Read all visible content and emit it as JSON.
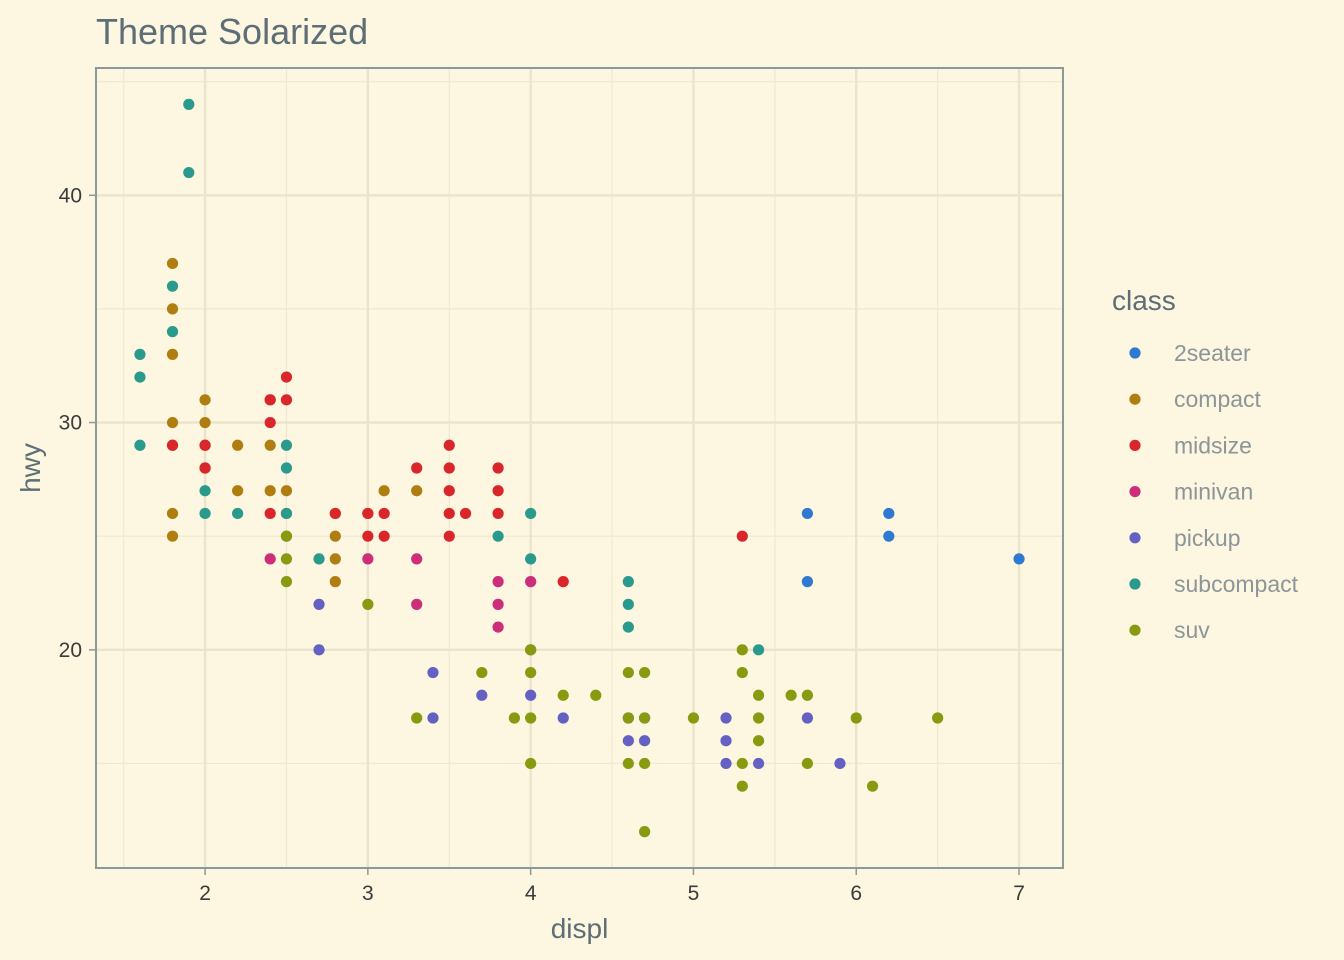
{
  "chart_data": {
    "type": "scatter",
    "title": "Theme Solarized",
    "xlabel": "displ",
    "ylabel": "hwy",
    "xlim": [
      1.33,
      7.27
    ],
    "ylim": [
      10.4,
      45.6
    ],
    "x_ticks": [
      2,
      3,
      4,
      5,
      6,
      7
    ],
    "y_ticks": [
      20,
      30,
      40
    ],
    "grid": true,
    "legend": {
      "title": "class",
      "position": "right",
      "entries": [
        {
          "name": "2seater",
          "color": "#2f7ad0"
        },
        {
          "name": "compact",
          "color": "#b07e10"
        },
        {
          "name": "midsize",
          "color": "#d9262a"
        },
        {
          "name": "minivan",
          "color": "#cc2e7a"
        },
        {
          "name": "pickup",
          "color": "#6461c2"
        },
        {
          "name": "subcompact",
          "color": "#2a9a8c"
        },
        {
          "name": "suv",
          "color": "#879a10"
        }
      ]
    },
    "series": [
      {
        "name": "2seater",
        "color": "#2f7ad0",
        "points": [
          [
            5.7,
            26
          ],
          [
            5.7,
            23
          ],
          [
            6.2,
            26
          ],
          [
            6.2,
            25
          ],
          [
            7.0,
            24
          ]
        ]
      },
      {
        "name": "compact",
        "color": "#b07e10",
        "points": [
          [
            1.8,
            37
          ],
          [
            1.8,
            35
          ],
          [
            1.8,
            33
          ],
          [
            1.8,
            30
          ],
          [
            1.8,
            29
          ],
          [
            1.8,
            26
          ],
          [
            1.8,
            25
          ],
          [
            2.0,
            31
          ],
          [
            2.0,
            30
          ],
          [
            2.0,
            29
          ],
          [
            2.0,
            28
          ],
          [
            2.2,
            29
          ],
          [
            2.2,
            27
          ],
          [
            2.4,
            31
          ],
          [
            2.4,
            29
          ],
          [
            2.4,
            27
          ],
          [
            2.5,
            27
          ],
          [
            2.5,
            26
          ],
          [
            2.5,
            25
          ],
          [
            2.8,
            26
          ],
          [
            2.8,
            25
          ],
          [
            2.8,
            24
          ],
          [
            2.8,
            23
          ],
          [
            3.0,
            26
          ],
          [
            3.1,
            27
          ],
          [
            3.3,
            27
          ]
        ]
      },
      {
        "name": "midsize",
        "color": "#d9262a",
        "points": [
          [
            1.8,
            29
          ],
          [
            2.0,
            29
          ],
          [
            2.0,
            28
          ],
          [
            2.4,
            31
          ],
          [
            2.4,
            30
          ],
          [
            2.4,
            26
          ],
          [
            2.5,
            32
          ],
          [
            2.5,
            31
          ],
          [
            2.8,
            26
          ],
          [
            3.0,
            26
          ],
          [
            3.0,
            25
          ],
          [
            3.1,
            26
          ],
          [
            3.1,
            25
          ],
          [
            3.3,
            28
          ],
          [
            3.5,
            29
          ],
          [
            3.5,
            28
          ],
          [
            3.5,
            27
          ],
          [
            3.5,
            26
          ],
          [
            3.5,
            25
          ],
          [
            3.6,
            26
          ],
          [
            3.8,
            28
          ],
          [
            3.8,
            27
          ],
          [
            3.8,
            26
          ],
          [
            4.2,
            23
          ],
          [
            5.3,
            25
          ]
        ]
      },
      {
        "name": "minivan",
        "color": "#cc2e7a",
        "points": [
          [
            2.4,
            24
          ],
          [
            3.0,
            24
          ],
          [
            3.3,
            24
          ],
          [
            3.3,
            22
          ],
          [
            3.8,
            23
          ],
          [
            3.8,
            22
          ],
          [
            3.8,
            21
          ],
          [
            4.0,
            23
          ]
        ]
      },
      {
        "name": "pickup",
        "color": "#6461c2",
        "points": [
          [
            2.7,
            22
          ],
          [
            2.7,
            20
          ],
          [
            3.4,
            19
          ],
          [
            3.4,
            17
          ],
          [
            3.7,
            18
          ],
          [
            4.0,
            20
          ],
          [
            4.0,
            18
          ],
          [
            4.2,
            17
          ],
          [
            4.6,
            17
          ],
          [
            4.6,
            16
          ],
          [
            4.7,
            17
          ],
          [
            4.7,
            16
          ],
          [
            5.2,
            17
          ],
          [
            5.2,
            16
          ],
          [
            5.2,
            15
          ],
          [
            5.4,
            15
          ],
          [
            5.7,
            17
          ],
          [
            5.9,
            15
          ]
        ]
      },
      {
        "name": "subcompact",
        "color": "#2a9a8c",
        "points": [
          [
            1.6,
            33
          ],
          [
            1.6,
            32
          ],
          [
            1.6,
            29
          ],
          [
            1.8,
            36
          ],
          [
            1.8,
            34
          ],
          [
            1.9,
            44
          ],
          [
            1.9,
            41
          ],
          [
            2.0,
            27
          ],
          [
            2.0,
            26
          ],
          [
            2.2,
            26
          ],
          [
            2.5,
            29
          ],
          [
            2.5,
            28
          ],
          [
            2.5,
            26
          ],
          [
            2.7,
            24
          ],
          [
            3.8,
            25
          ],
          [
            4.0,
            26
          ],
          [
            4.0,
            24
          ],
          [
            4.6,
            23
          ],
          [
            4.6,
            22
          ],
          [
            4.6,
            21
          ],
          [
            5.4,
            20
          ]
        ]
      },
      {
        "name": "suv",
        "color": "#879a10",
        "points": [
          [
            2.5,
            25
          ],
          [
            2.5,
            24
          ],
          [
            2.5,
            23
          ],
          [
            3.0,
            22
          ],
          [
            3.3,
            17
          ],
          [
            3.7,
            19
          ],
          [
            3.9,
            17
          ],
          [
            4.0,
            20
          ],
          [
            4.0,
            19
          ],
          [
            4.0,
            17
          ],
          [
            4.0,
            15
          ],
          [
            4.2,
            18
          ],
          [
            4.4,
            18
          ],
          [
            4.6,
            19
          ],
          [
            4.6,
            17
          ],
          [
            4.6,
            15
          ],
          [
            4.7,
            19
          ],
          [
            4.7,
            17
          ],
          [
            4.7,
            15
          ],
          [
            4.7,
            12
          ],
          [
            5.0,
            17
          ],
          [
            5.3,
            20
          ],
          [
            5.3,
            19
          ],
          [
            5.3,
            15
          ],
          [
            5.3,
            14
          ],
          [
            5.4,
            18
          ],
          [
            5.4,
            17
          ],
          [
            5.4,
            16
          ],
          [
            5.6,
            18
          ],
          [
            5.7,
            18
          ],
          [
            5.7,
            15
          ],
          [
            6.0,
            17
          ],
          [
            6.1,
            14
          ],
          [
            6.5,
            17
          ]
        ]
      }
    ]
  }
}
